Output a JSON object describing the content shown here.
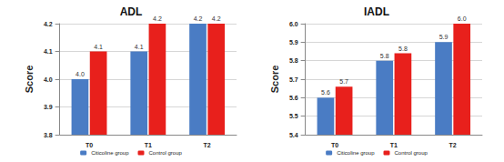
{
  "chart_data": [
    {
      "type": "bar",
      "title": "ADL",
      "y_label": "Score",
      "categories": [
        "T0",
        "T1",
        "T2"
      ],
      "series": [
        {
          "name": "Citicoline group",
          "color": "#4a7cc4",
          "values": [
            4.0,
            4.1,
            4.2
          ],
          "value_labels": [
            "4.0",
            "4.1",
            "4.2"
          ]
        },
        {
          "name": "Control group",
          "color": "#e8201c",
          "values": [
            4.1,
            4.2,
            4.2
          ],
          "value_labels": [
            "4.1",
            "4.2",
            "4.2"
          ]
        }
      ],
      "ylim": [
        3.8,
        4.2
      ],
      "yticks": [
        3.8,
        3.9,
        {
          "value": 4.0,
          "label": "4.0"
        },
        4.1,
        4.2
      ],
      "grid": true,
      "legend": "bottom",
      "data_labels": true
    },
    {
      "type": "bar",
      "title": "IADL",
      "y_label": "Score",
      "categories": [
        "T0",
        "T1",
        "T2"
      ],
      "series": [
        {
          "name": "Citicoline group",
          "color": "#4a7cc4",
          "values": [
            5.6,
            5.8,
            5.9
          ],
          "value_labels": [
            "5.6",
            "5.8",
            "5.9"
          ]
        },
        {
          "name": "Control group",
          "color": "#e8201c",
          "values": [
            5.66,
            5.84,
            6.0
          ],
          "value_labels": [
            "5.7",
            "5.8",
            "6.0"
          ]
        }
      ],
      "ylim": [
        5.4,
        6.0
      ],
      "yticks": [
        5.4,
        5.5,
        5.6,
        5.7,
        5.8,
        5.9,
        {
          "value": 6.0,
          "label": "6.0"
        }
      ],
      "grid": true,
      "legend": "bottom",
      "data_labels": true
    }
  ]
}
